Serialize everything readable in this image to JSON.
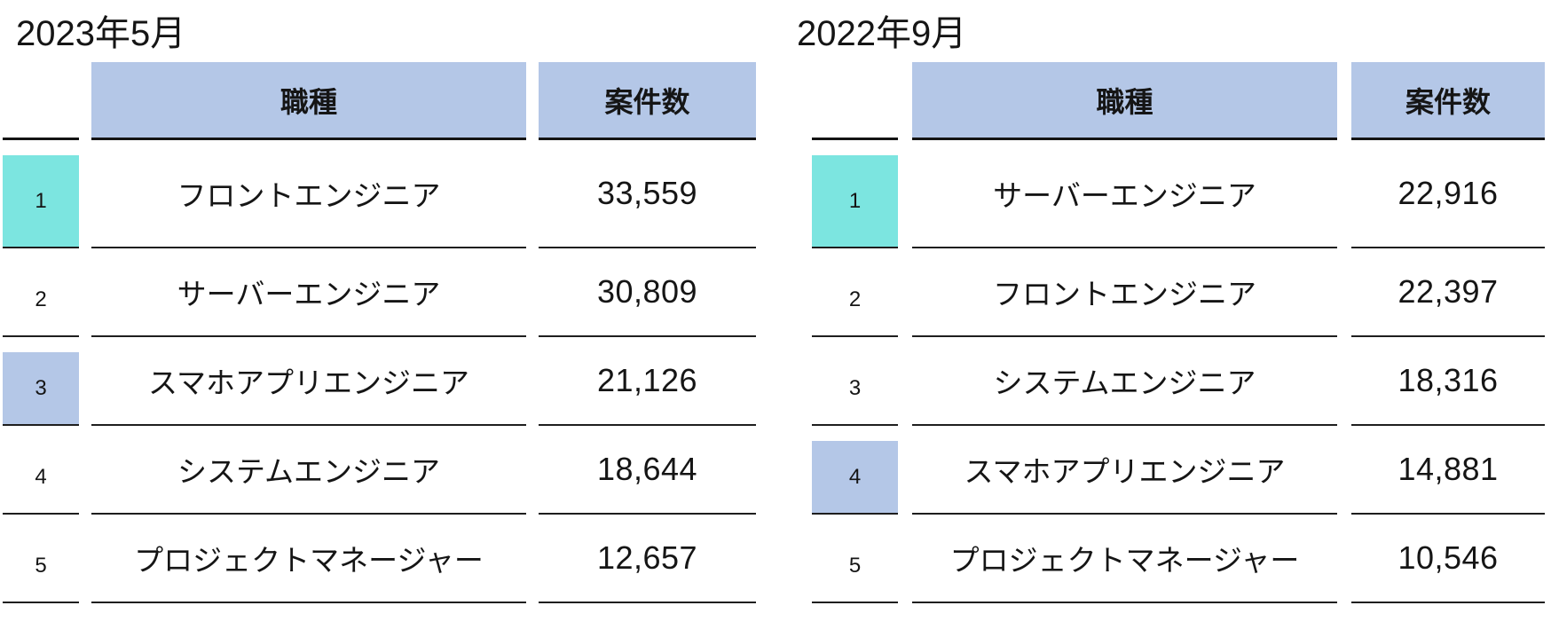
{
  "colors": {
    "header_bg": "#B4C7E7",
    "rank_first_highlight": "#7CE5E0",
    "rank_secondary_highlight": "#B4C7E7",
    "rule_line": "#1e1e1e",
    "text": "#151515"
  },
  "chart_data": [
    {
      "type": "table",
      "title": "2023年5月",
      "columns": {
        "rank": "",
        "job": "職種",
        "count": "案件数"
      },
      "rows": [
        {
          "rank": "1",
          "job": "フロントエンジニア",
          "count": "33,559",
          "rank_highlight": "teal"
        },
        {
          "rank": "2",
          "job": "サーバーエンジニア",
          "count": "30,809",
          "rank_highlight": "none"
        },
        {
          "rank": "3",
          "job": "スマホアプリエンジニア",
          "count": "21,126",
          "rank_highlight": "blue"
        },
        {
          "rank": "4",
          "job": "システムエンジニア",
          "count": "18,644",
          "rank_highlight": "none"
        },
        {
          "rank": "5",
          "job": "プロジェクトマネージャー",
          "count": "12,657",
          "rank_highlight": "none"
        }
      ]
    },
    {
      "type": "table",
      "title": "2022年9月",
      "columns": {
        "rank": "",
        "job": "職種",
        "count": "案件数"
      },
      "rows": [
        {
          "rank": "1",
          "job": "サーバーエンジニア",
          "count": "22,916",
          "rank_highlight": "teal"
        },
        {
          "rank": "2",
          "job": "フロントエンジニア",
          "count": "22,397",
          "rank_highlight": "none"
        },
        {
          "rank": "3",
          "job": "システムエンジニア",
          "count": "18,316",
          "rank_highlight": "none"
        },
        {
          "rank": "4",
          "job": "スマホアプリエンジニア",
          "count": "14,881",
          "rank_highlight": "blue"
        },
        {
          "rank": "5",
          "job": "プロジェクトマネージャー",
          "count": "10,546",
          "rank_highlight": "none"
        }
      ]
    }
  ]
}
